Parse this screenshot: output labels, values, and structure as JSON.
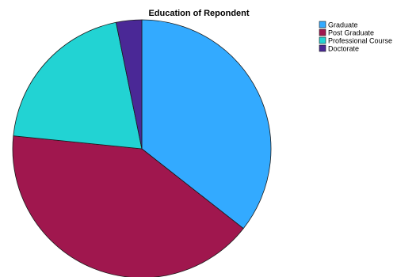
{
  "chart_data": {
    "type": "pie",
    "title": "Education of Repondent",
    "legend_position": "top-right",
    "start_angle": "12 o'clock",
    "direction": "clockwise",
    "slices": [
      {
        "label": "Graduate",
        "value": 35.6,
        "color": "#33aaff"
      },
      {
        "label": "Post Graduate",
        "value": 41.0,
        "color": "#a0174e"
      },
      {
        "label": "Professional Course",
        "value": 20.2,
        "color": "#22d3d3"
      },
      {
        "label": "Doctorate",
        "value": 3.2,
        "color": "#4a2896"
      }
    ]
  }
}
